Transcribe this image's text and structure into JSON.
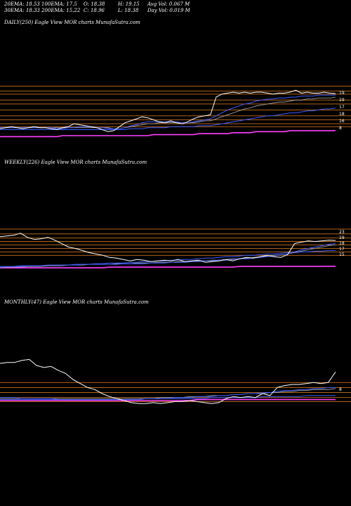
{
  "header": {
    "row1": [
      "20EMA: 18.53",
      "100EMA: 17.5",
      "O: 18.38",
      "H: 19.15",
      "Avg Vol: 0.067 M"
    ],
    "row2": [
      "30EMA: 18.33",
      "200EMA: 15.22",
      "C: 18.96",
      "L: 18.38",
      "Day Vol: 0.019 M"
    ]
  },
  "panels": {
    "daily": {
      "title": "DAILY(250) Eagle   View  MOR charts MunafaSutra.com"
    },
    "weekly": {
      "title": "WEEKLY(226) Eagle   View  MOR charts MunafaSutra.com"
    },
    "monthly": {
      "title": "MONTHLY(47) Eagle   View  MOR charts MunafaSutra.com"
    }
  },
  "colors": {
    "background": "#000000",
    "price": "#ffffff",
    "ema_blue": "#3a5bff",
    "ema_magenta": "#ff40ff",
    "ema_grey": "#b0b0b0",
    "level": "#c8701a"
  },
  "chart_data": [
    {
      "type": "line",
      "name": "daily",
      "ticks": [
        "19",
        "19",
        "17",
        "18",
        "16",
        "8"
      ],
      "series": [
        {
          "key": "close",
          "values": [
            15.4,
            15.5,
            15.6,
            15.5,
            15.4,
            15.5,
            15.6,
            15.5,
            15.5,
            15.4,
            15.3,
            15.5,
            15.6,
            15.9,
            15.8,
            15.7,
            15.6,
            15.5,
            15.3,
            15.1,
            15.2,
            15.6,
            16.0,
            16.2,
            16.4,
            16.6,
            16.5,
            16.3,
            16.1,
            16.0,
            16.2,
            16.0,
            15.9,
            16.1,
            16.4,
            16.6,
            16.7,
            16.8,
            18.6,
            18.9,
            19.0,
            19.1,
            19.0,
            19.1,
            19.0,
            19.1,
            19.1,
            19.0,
            18.9,
            19.0,
            19.0,
            19.1,
            19.3,
            19.0,
            19.1,
            19.0,
            19.0,
            19.1,
            19.0,
            18.96
          ]
        },
        {
          "key": "ema20",
          "values": [
            15.5,
            15.5,
            15.5,
            15.5,
            15.5,
            15.5,
            15.5,
            15.5,
            15.5,
            15.5,
            15.4,
            15.4,
            15.5,
            15.5,
            15.6,
            15.6,
            15.6,
            15.5,
            15.5,
            15.4,
            15.4,
            15.4,
            15.5,
            15.7,
            15.8,
            16.0,
            16.1,
            16.1,
            16.1,
            16.1,
            16.1,
            16.1,
            16.0,
            16.0,
            16.1,
            16.2,
            16.3,
            16.4,
            16.7,
            17.0,
            17.3,
            17.5,
            17.7,
            17.9,
            18.0,
            18.2,
            18.3,
            18.4,
            18.4,
            18.5,
            18.5,
            18.6,
            18.6,
            18.7,
            18.7,
            18.7,
            18.8,
            18.8,
            18.8,
            18.8
          ]
        },
        {
          "key": "ema30",
          "values": [
            15.5,
            15.5,
            15.5,
            15.5,
            15.5,
            15.5,
            15.5,
            15.5,
            15.5,
            15.5,
            15.5,
            15.5,
            15.5,
            15.5,
            15.5,
            15.5,
            15.5,
            15.5,
            15.5,
            15.5,
            15.4,
            15.4,
            15.5,
            15.6,
            15.7,
            15.8,
            15.9,
            15.9,
            16.0,
            16.0,
            16.0,
            16.0,
            16.0,
            16.0,
            16.0,
            16.1,
            16.2,
            16.2,
            16.4,
            16.6,
            16.8,
            17.0,
            17.2,
            17.4,
            17.5,
            17.7,
            17.8,
            17.9,
            18.0,
            18.1,
            18.1,
            18.2,
            18.3,
            18.3,
            18.4,
            18.4,
            18.5,
            18.5,
            18.5,
            18.6
          ]
        },
        {
          "key": "ema100",
          "values": [
            15.3,
            15.3,
            15.3,
            15.3,
            15.3,
            15.3,
            15.3,
            15.3,
            15.3,
            15.3,
            15.3,
            15.3,
            15.3,
            15.3,
            15.3,
            15.3,
            15.3,
            15.3,
            15.3,
            15.3,
            15.3,
            15.3,
            15.3,
            15.4,
            15.4,
            15.4,
            15.5,
            15.5,
            15.5,
            15.5,
            15.6,
            15.6,
            15.6,
            15.6,
            15.6,
            15.7,
            15.7,
            15.7,
            15.8,
            15.9,
            16.0,
            16.1,
            16.2,
            16.3,
            16.4,
            16.5,
            16.6,
            16.7,
            16.7,
            16.8,
            16.9,
            17.0,
            17.0,
            17.1,
            17.2,
            17.2,
            17.3,
            17.4,
            17.4,
            17.5
          ]
        },
        {
          "key": "ema200",
          "values": [
            14.6,
            14.6,
            14.6,
            14.6,
            14.6,
            14.6,
            14.6,
            14.6,
            14.6,
            14.6,
            14.6,
            14.7,
            14.7,
            14.7,
            14.7,
            14.7,
            14.7,
            14.7,
            14.7,
            14.7,
            14.7,
            14.7,
            14.7,
            14.7,
            14.7,
            14.7,
            14.7,
            14.8,
            14.8,
            14.8,
            14.8,
            14.8,
            14.8,
            14.8,
            14.8,
            14.9,
            14.9,
            14.9,
            14.9,
            14.9,
            14.9,
            15.0,
            15.0,
            15.0,
            15.0,
            15.1,
            15.1,
            15.1,
            15.1,
            15.1,
            15.1,
            15.2,
            15.2,
            15.2,
            15.2,
            15.2,
            15.2,
            15.2,
            15.2,
            15.22
          ]
        }
      ],
      "levels": [
        19.7,
        19.2,
        18.9,
        18.3,
        17.9,
        17.3,
        16.7,
        16.3,
        15.9,
        15.6
      ],
      "ylim": [
        14.2,
        20.6
      ]
    },
    {
      "type": "line",
      "name": "weekly",
      "ticks": [
        "23",
        "19",
        "18",
        "17",
        "15"
      ],
      "series": [
        {
          "key": "close",
          "values": [
            19.5,
            19.6,
            19.7,
            20.0,
            19.4,
            19.1,
            19.2,
            19.4,
            19.0,
            18.5,
            18.0,
            17.8,
            17.5,
            17.2,
            17.0,
            16.8,
            16.5,
            16.4,
            16.2,
            16.0,
            16.2,
            16.1,
            15.9,
            16.0,
            16.1,
            16.0,
            16.2,
            15.9,
            16.0,
            16.1,
            15.8,
            15.9,
            16.0,
            16.2,
            16.0,
            16.3,
            16.5,
            16.4,
            16.6,
            16.8,
            16.6,
            16.5,
            16.9,
            18.5,
            18.7,
            18.9,
            18.8,
            18.9,
            19.0,
            18.96
          ]
        },
        {
          "key": "ema20",
          "values": [
            15.2,
            15.2,
            15.2,
            15.3,
            15.3,
            15.3,
            15.3,
            15.4,
            15.4,
            15.4,
            15.4,
            15.4,
            15.5,
            15.5,
            15.5,
            15.5,
            15.5,
            15.5,
            15.6,
            15.6,
            15.6,
            15.6,
            15.7,
            15.7,
            15.7,
            15.8,
            15.8,
            15.8,
            15.9,
            15.9,
            16.0,
            16.0,
            16.1,
            16.1,
            16.2,
            16.3,
            16.3,
            16.4,
            16.5,
            16.6,
            16.7,
            16.9,
            17.0,
            17.3,
            17.6,
            17.8,
            18.0,
            18.2,
            18.4,
            18.53
          ]
        },
        {
          "key": "ema30",
          "values": [
            15.0,
            15.1,
            15.1,
            15.1,
            15.2,
            15.2,
            15.2,
            15.3,
            15.3,
            15.3,
            15.4,
            15.4,
            15.4,
            15.5,
            15.5,
            15.5,
            15.5,
            15.6,
            15.6,
            15.6,
            15.7,
            15.7,
            15.7,
            15.8,
            15.8,
            15.8,
            15.9,
            15.9,
            15.9,
            16.0,
            16.0,
            16.1,
            16.1,
            16.2,
            16.3,
            16.3,
            16.4,
            16.5,
            16.6,
            16.7,
            16.8,
            16.9,
            17.0,
            17.2,
            17.4,
            17.6,
            17.8,
            18.0,
            18.2,
            18.33
          ]
        },
        {
          "key": "ema100",
          "values": [
            15.1,
            15.1,
            15.1,
            15.2,
            15.2,
            15.2,
            15.3,
            15.3,
            15.3,
            15.4,
            15.4,
            15.5,
            15.5,
            15.5,
            15.6,
            15.6,
            15.7,
            15.7,
            15.7,
            15.8,
            15.8,
            15.9,
            15.9,
            16.0,
            16.0,
            16.1,
            16.1,
            16.2,
            16.2,
            16.3,
            16.4,
            16.4,
            16.5,
            16.6,
            16.6,
            16.7,
            16.8,
            16.8,
            16.9,
            17.0,
            17.0,
            17.1,
            17.2,
            17.2,
            17.3,
            17.3,
            17.4,
            17.4,
            17.5,
            17.5
          ]
        },
        {
          "key": "ema200",
          "values": [
            15.0,
            15.0,
            15.0,
            15.0,
            15.0,
            15.0,
            15.0,
            15.0,
            15.0,
            15.0,
            15.0,
            15.0,
            15.0,
            15.0,
            15.0,
            15.0,
            15.1,
            15.1,
            15.1,
            15.1,
            15.1,
            15.1,
            15.1,
            15.1,
            15.1,
            15.1,
            15.1,
            15.1,
            15.1,
            15.1,
            15.1,
            15.1,
            15.1,
            15.1,
            15.1,
            15.2,
            15.2,
            15.2,
            15.2,
            15.2,
            15.2,
            15.2,
            15.2,
            15.2,
            15.2,
            15.2,
            15.2,
            15.2,
            15.22,
            15.22
          ]
        }
      ],
      "levels": [
        20.6,
        19.9,
        19.3,
        18.8,
        18.3,
        17.8,
        17.3,
        16.8
      ],
      "ylim": [
        14.6,
        21.2
      ]
    },
    {
      "type": "line",
      "name": "monthly",
      "ticks": [
        "8"
      ],
      "series": [
        {
          "key": "close",
          "values": [
            19.8,
            19.9,
            19.9,
            20.1,
            20.2,
            19.6,
            19.4,
            19.5,
            19.1,
            18.8,
            18.2,
            17.8,
            17.4,
            17.2,
            16.8,
            16.5,
            16.3,
            16.1,
            15.9,
            15.8,
            15.8,
            15.9,
            15.8,
            15.9,
            16.0,
            16.0,
            16.1,
            16.0,
            15.9,
            15.8,
            15.9,
            16.3,
            16.5,
            16.4,
            16.5,
            16.4,
            16.8,
            16.6,
            17.4,
            17.6,
            17.7,
            17.7,
            17.8,
            17.9,
            17.8,
            17.9,
            18.96
          ]
        },
        {
          "key": "ema20",
          "values": [
            16.4,
            16.4,
            16.4,
            16.3,
            16.3,
            16.3,
            16.3,
            16.3,
            16.2,
            16.2,
            16.2,
            16.2,
            16.2,
            16.2,
            16.2,
            16.2,
            16.2,
            16.2,
            16.2,
            16.2,
            16.3,
            16.3,
            16.3,
            16.3,
            16.4,
            16.4,
            16.4,
            16.5,
            16.5,
            16.5,
            16.6,
            16.6,
            16.7,
            16.7,
            16.8,
            16.8,
            16.9,
            16.9,
            17.0,
            17.1,
            17.1,
            17.2,
            17.2,
            17.3,
            17.3,
            17.4,
            17.4
          ]
        },
        {
          "key": "ema30",
          "values": [
            16.3,
            16.3,
            16.3,
            16.3,
            16.3,
            16.3,
            16.3,
            16.3,
            16.3,
            16.3,
            16.3,
            16.3,
            16.3,
            16.3,
            16.3,
            16.3,
            16.3,
            16.3,
            16.3,
            16.3,
            16.3,
            16.3,
            16.4,
            16.4,
            16.4,
            16.4,
            16.5,
            16.5,
            16.5,
            16.6,
            16.6,
            16.6,
            16.7,
            16.7,
            16.8,
            16.8,
            16.8,
            16.9,
            16.9,
            17.0,
            17.0,
            17.1,
            17.1,
            17.2,
            17.2,
            17.2,
            17.3
          ]
        },
        {
          "key": "ema100",
          "values": [
            16.2,
            16.2,
            16.2,
            16.2,
            16.2,
            16.2,
            16.2,
            16.2,
            16.2,
            16.2,
            16.2,
            16.2,
            16.2,
            16.2,
            16.2,
            16.2,
            16.2,
            16.2,
            16.2,
            16.2,
            16.3,
            16.3,
            16.3,
            16.3,
            16.3,
            16.3,
            16.3,
            16.3,
            16.3,
            16.4,
            16.4,
            16.4,
            16.4,
            16.4,
            16.4,
            16.4,
            16.5,
            16.5,
            16.5,
            16.5,
            16.5,
            16.5,
            16.6,
            16.6,
            16.6,
            16.6,
            16.6
          ]
        },
        {
          "key": "ema200",
          "values": [
            16.1,
            16.1,
            16.1,
            16.1,
            16.1,
            16.1,
            16.1,
            16.1,
            16.1,
            16.1,
            16.1,
            16.1,
            16.1,
            16.1,
            16.1,
            16.1,
            16.1,
            16.1,
            16.1,
            16.1,
            16.1,
            16.1,
            16.1,
            16.1,
            16.1,
            16.1,
            16.1,
            16.2,
            16.2,
            16.2,
            16.2,
            16.2,
            16.2,
            16.2,
            16.2,
            16.2,
            16.2,
            16.2,
            16.2,
            16.2,
            16.2,
            16.2,
            16.2,
            16.2,
            16.2,
            16.2,
            16.2
          ]
        }
      ],
      "levels": [
        17.9,
        17.4,
        16.9,
        16.4,
        16.0
      ],
      "ylim": [
        14.0,
        21.0
      ]
    }
  ]
}
